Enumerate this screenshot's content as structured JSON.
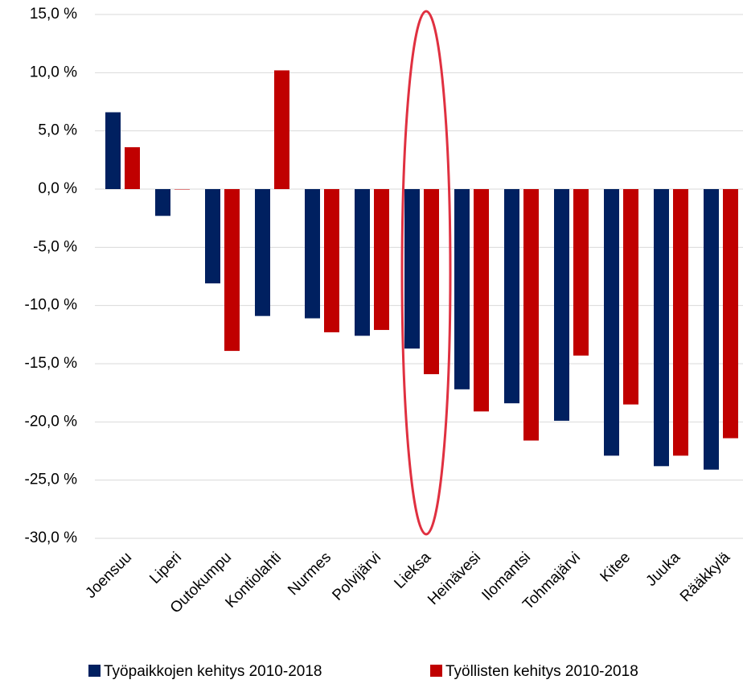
{
  "chart_data": {
    "type": "bar",
    "categories": [
      "Joensuu",
      "Liperi",
      "Outokumpu",
      "Kontiolahti",
      "Nurmes",
      "Polvijärvi",
      "Lieksa",
      "Heinävesi",
      "Ilomantsi",
      "Tohmajärvi",
      "Kitee",
      "Juuka",
      "Rääkkylä"
    ],
    "series": [
      {
        "name": "Työpaikkojen kehitys 2010-2018",
        "color": "#002060",
        "values": [
          6.6,
          -2.3,
          -8.1,
          -10.9,
          -11.1,
          -12.6,
          -13.7,
          -17.2,
          -18.4,
          -19.9,
          -22.9,
          -23.8,
          -24.1
        ]
      },
      {
        "name": "Työllisten kehitys 2010-2018",
        "color": "#c00000",
        "values": [
          3.6,
          0.0,
          -13.9,
          10.2,
          -12.3,
          -12.1,
          -15.9,
          -19.1,
          -21.6,
          -14.3,
          -18.5,
          -22.9,
          -21.4
        ]
      }
    ],
    "ylim": [
      -30,
      15
    ],
    "yticks": [
      {
        "value": 15,
        "label": "15,0 %"
      },
      {
        "value": 10,
        "label": "10,0 %"
      },
      {
        "value": 5,
        "label": "5,0 %"
      },
      {
        "value": 0,
        "label": "0,0 %"
      },
      {
        "value": -5,
        "label": "-5,0 %"
      },
      {
        "value": -10,
        "label": "-10,0 %"
      },
      {
        "value": -15,
        "label": "-15,0 %"
      },
      {
        "value": -20,
        "label": "-20,0 %"
      },
      {
        "value": -25,
        "label": "-25,0 %"
      },
      {
        "value": -30,
        "label": "-30,0 %"
      }
    ],
    "grid": true,
    "legend": "bottom"
  }
}
